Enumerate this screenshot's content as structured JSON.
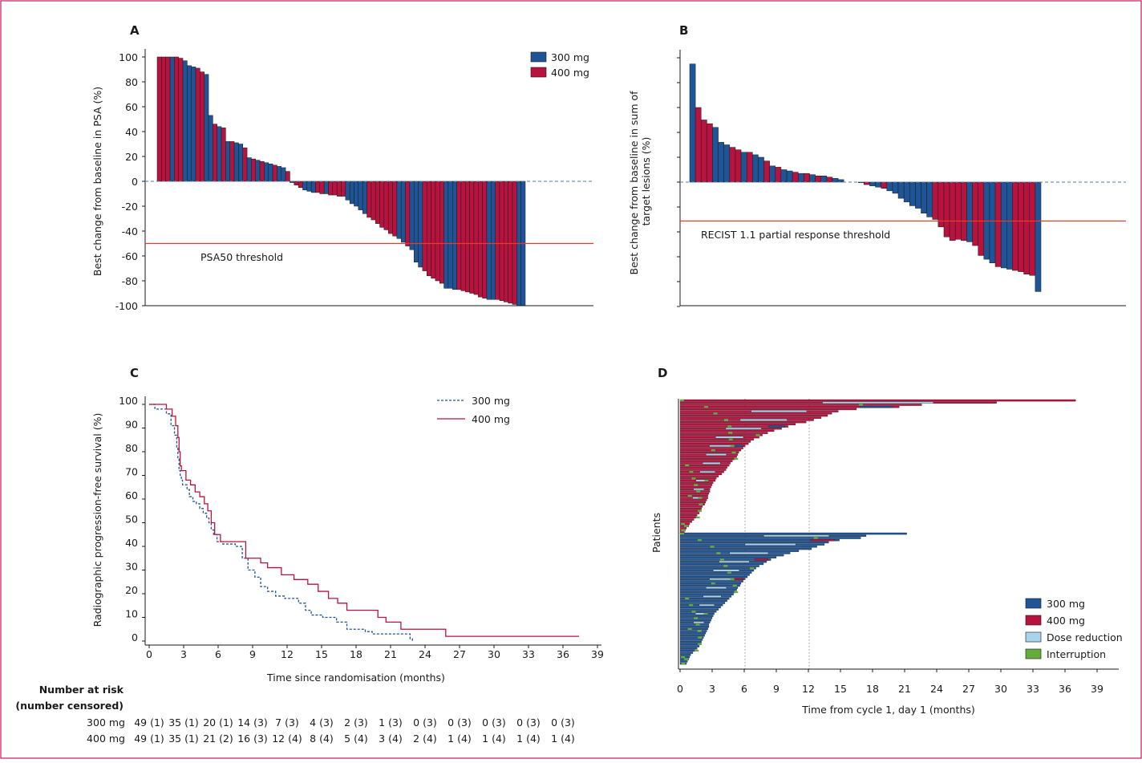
{
  "colors": {
    "blue": "#1f5596",
    "red": "#b8133f",
    "light_blue": "#a8d3ec",
    "green": "#62ad3b",
    "threshold": "#e43b2e",
    "frame": "#c0185a",
    "dashed_zero": "#4d7fa6"
  },
  "chart_data": [
    {
      "id": "A",
      "panel_label": "A",
      "type": "bar",
      "ylabel": "Best change from baseline in PSA (%)",
      "ylim": [
        -100,
        100
      ],
      "yticks": [
        "100",
        "80",
        "60",
        "40",
        "20",
        "0",
        "-20",
        "-40",
        "-60",
        "-80",
        "-100"
      ],
      "threshold": -50,
      "threshold_label": "PSA50 threshold",
      "legend": [
        {
          "label": "300 mg",
          "color": "blue"
        },
        {
          "label": "400 mg",
          "color": "red"
        }
      ],
      "series": [
        {
          "name": "300 mg",
          "color": "blue"
        },
        {
          "name": "400 mg",
          "color": "red"
        }
      ],
      "values": [
        100,
        100,
        100,
        100,
        100,
        99,
        97,
        93,
        92,
        91,
        88,
        86,
        53,
        46,
        44,
        43,
        32,
        32,
        31,
        30,
        27,
        19,
        18,
        17,
        16,
        15,
        14,
        13,
        12,
        11,
        8,
        -1,
        -3,
        -5,
        -7,
        -8,
        -9,
        -9,
        -10,
        -10,
        -11,
        -11,
        -12,
        -12,
        -15,
        -18,
        -20,
        -23,
        -26,
        -29,
        -31,
        -34,
        -37,
        -39,
        -42,
        -44,
        -46,
        -49,
        -52,
        -55,
        -65,
        -69,
        -72,
        -76,
        -78,
        -80,
        -82,
        -86,
        -86,
        -87,
        -87,
        -88,
        -89,
        -90,
        -91,
        -93,
        -94,
        -95,
        -95,
        -95,
        -96,
        -97,
        -98,
        -99,
        -100,
        -100
      ],
      "groups": [
        1,
        1,
        1,
        0,
        1,
        1,
        0,
        0,
        0,
        1,
        1,
        0,
        0,
        1,
        0,
        1,
        0,
        1,
        0,
        0,
        1,
        0,
        1,
        0,
        1,
        0,
        0,
        1,
        0,
        0,
        1,
        0,
        1,
        1,
        0,
        0,
        0,
        1,
        1,
        0,
        1,
        1,
        1,
        1,
        0,
        0,
        0,
        0,
        0,
        1,
        1,
        1,
        1,
        1,
        1,
        1,
        0,
        0,
        1,
        0,
        0,
        0,
        1,
        1,
        1,
        1,
        1,
        0,
        0,
        0,
        1,
        1,
        1,
        1,
        1,
        1,
        1,
        0,
        0,
        1,
        1,
        1,
        1,
        1,
        0,
        0
      ]
    },
    {
      "id": "B",
      "panel_label": "B",
      "type": "bar",
      "ylabel": "Best change from baseline in sum of target lesions (%)",
      "ylim": [
        -100,
        100
      ],
      "threshold": -30,
      "threshold_label": "RECIST 1.1 partial response threshold",
      "series": [
        {
          "name": "300 mg",
          "color": "blue"
        },
        {
          "name": "400 mg",
          "color": "red"
        }
      ],
      "values": [
        95,
        60,
        50,
        47,
        44,
        32,
        30,
        28,
        26,
        24,
        24,
        22,
        20,
        17,
        13,
        12,
        10,
        9,
        8,
        7,
        7,
        6,
        5,
        5,
        4,
        3,
        2,
        0,
        -2,
        -3,
        -4,
        -5,
        -7,
        -9,
        -13,
        -16,
        -19,
        -21,
        -25,
        -28,
        -30,
        -36,
        -44,
        -47,
        -46,
        -47,
        -48,
        -51,
        -59,
        -62,
        -65,
        -68,
        -69,
        -70,
        -71,
        -72,
        -74,
        -75,
        -88
      ],
      "groups": [
        0,
        1,
        1,
        1,
        0,
        0,
        0,
        1,
        1,
        0,
        1,
        0,
        0,
        1,
        0,
        1,
        0,
        0,
        1,
        0,
        1,
        0,
        1,
        0,
        1,
        0,
        0,
        0,
        1,
        0,
        0,
        1,
        0,
        0,
        0,
        0,
        0,
        0,
        0,
        0,
        1,
        1,
        1,
        1,
        1,
        1,
        0,
        1,
        1,
        0,
        0,
        1,
        0,
        0,
        1,
        1,
        1,
        1,
        0
      ],
      "gap_after": 26
    },
    {
      "id": "C",
      "panel_label": "C",
      "type": "line",
      "step": true,
      "xlabel": "Time since randomisation (months)",
      "ylabel": "Radiographic progression-free survival (%)",
      "xlim": [
        0,
        40
      ],
      "ylim": [
        0,
        100
      ],
      "xticks": [
        "0",
        "3",
        "6",
        "9",
        "12",
        "15",
        "18",
        "21",
        "24",
        "27",
        "30",
        "33",
        "36",
        "39"
      ],
      "yticks": [
        "100",
        "90",
        "80",
        "70",
        "60",
        "50",
        "40",
        "30",
        "20",
        "10",
        "0"
      ],
      "series": [
        {
          "name": "300 mg",
          "style": "dashed",
          "color": "blue",
          "x": [
            0,
            0.5,
            1.5,
            1.9,
            2.2,
            2.4,
            2.5,
            2.6,
            2.7,
            2.8,
            2.9,
            3.3,
            3.5,
            3.8,
            4.1,
            4.4,
            4.7,
            5.0,
            5.2,
            5.4,
            5.6,
            5.9,
            6.4,
            7.5,
            8.1,
            8.6,
            9.2,
            9.7,
            10.3,
            11.0,
            11.8,
            13.0,
            13.6,
            14.1,
            15.1,
            16.3,
            17.2,
            18.8,
            19.4,
            22.7,
            22.9
          ],
          "y": [
            100,
            98,
            96,
            91,
            87,
            82,
            77,
            72,
            70,
            68,
            66,
            64,
            61,
            59,
            58,
            56,
            54,
            52,
            50,
            47,
            45,
            42,
            41,
            40,
            35,
            30,
            27,
            23,
            21,
            19,
            18,
            16,
            13,
            11,
            10,
            8,
            5,
            4,
            3,
            1,
            0
          ]
        },
        {
          "name": "400 mg",
          "style": "solid",
          "color": "red",
          "x": [
            0,
            1.5,
            2.0,
            2.3,
            2.5,
            2.6,
            2.7,
            2.8,
            3.2,
            3.6,
            4.0,
            4.4,
            4.8,
            5.1,
            5.4,
            5.7,
            6.2,
            8.2,
            8.4,
            9.7,
            10.3,
            11.5,
            12.6,
            13.8,
            14.7,
            15.6,
            16.4,
            17.2,
            19.9,
            20.6,
            21.9,
            25.8,
            37.4
          ],
          "y": [
            100,
            98,
            95,
            91,
            86,
            80,
            74,
            72,
            68,
            66,
            63,
            61,
            58,
            55,
            50,
            45,
            42,
            42,
            35,
            33,
            31,
            28,
            26,
            24,
            21,
            18,
            16,
            13,
            10,
            8,
            5,
            2,
            2
          ]
        }
      ]
    },
    {
      "id": "D",
      "panel_label": "D",
      "type": "bar",
      "orientation": "horizontal",
      "xlabel": "Time from cycle 1, day 1 (months)",
      "ylabel": "Patients",
      "xlim": [
        0,
        41
      ],
      "xticks": [
        "0",
        "3",
        "6",
        "9",
        "12",
        "15",
        "18",
        "21",
        "24",
        "27",
        "30",
        "33",
        "36",
        "39"
      ],
      "reference_lines": [
        6,
        12
      ],
      "legend": [
        {
          "label": "300 mg",
          "color": "blue"
        },
        {
          "label": "400 mg",
          "color": "red"
        },
        {
          "label": "Dose reduction",
          "color": "light_blue"
        },
        {
          "label": "Interruption",
          "color": "green"
        }
      ],
      "series": [
        {
          "name": "400 mg",
          "color": "red",
          "durations": [
            37,
            29.6,
            22.6,
            20.5,
            16.5,
            14.8,
            14.2,
            13.8,
            13.2,
            12.5,
            11.8,
            10.8,
            10.1,
            9.5,
            8.8,
            8.2,
            7.7,
            7.4,
            6.9,
            6.6,
            6.4,
            6.1,
            5.9,
            5.7,
            5.5,
            5.4,
            5.3,
            5.1,
            4.9,
            4.7,
            4.6,
            4.4,
            4.3,
            4.1,
            3.9,
            3.6,
            3.4,
            3.3,
            3.1,
            3.0,
            2.9,
            2.8,
            2.8,
            2.7,
            2.6,
            2.6,
            2.5,
            2.4,
            2.3,
            2.1,
            2.0,
            1.9,
            1.8,
            1.6,
            1.5,
            1.3,
            1.1,
            0.9,
            0.8,
            0.6,
            0.5,
            0.4
          ]
        },
        {
          "name": "300 mg",
          "color": "blue",
          "durations": [
            21.2,
            17.4,
            16.9,
            14.9,
            13.9,
            13.5,
            12.8,
            12.3,
            11.1,
            10.3,
            9.7,
            9.0,
            8.5,
            8.1,
            7.8,
            7.4,
            7.1,
            6.9,
            6.7,
            6.5,
            6.3,
            6.1,
            5.9,
            5.7,
            5.6,
            5.4,
            5.3,
            5.1,
            5.0,
            4.8,
            4.6,
            4.4,
            4.2,
            4.0,
            3.8,
            3.6,
            3.4,
            3.2,
            3.1,
            3.0,
            2.9,
            2.8,
            2.7,
            2.7,
            2.6,
            2.5,
            2.4,
            2.3,
            2.2,
            2.1,
            2.0,
            1.9,
            1.8,
            1.6,
            1.4,
            1.2,
            1.0,
            0.9,
            0.8,
            0.7,
            0.6
          ]
        }
      ]
    }
  ],
  "number_at_risk": {
    "title_line1": "Number at risk",
    "title_line2": "(number censored)",
    "rows": [
      {
        "label": "300 mg",
        "values": [
          "49 (1)",
          "35 (1)",
          "20 (1)",
          "14 (3)",
          "7 (3)",
          "4 (3)",
          "2 (3)",
          "1 (3)",
          "0 (3)",
          "0 (3)",
          "0 (3)",
          "0 (3)",
          "0 (3)"
        ]
      },
      {
        "label": "400 mg",
        "values": [
          "49 (1)",
          "35 (1)",
          "21 (2)",
          "16 (3)",
          "12 (4)",
          "8 (4)",
          "5 (4)",
          "3 (4)",
          "2 (4)",
          "1 (4)",
          "1 (4)",
          "1 (4)",
          "1 (4)"
        ]
      }
    ]
  }
}
